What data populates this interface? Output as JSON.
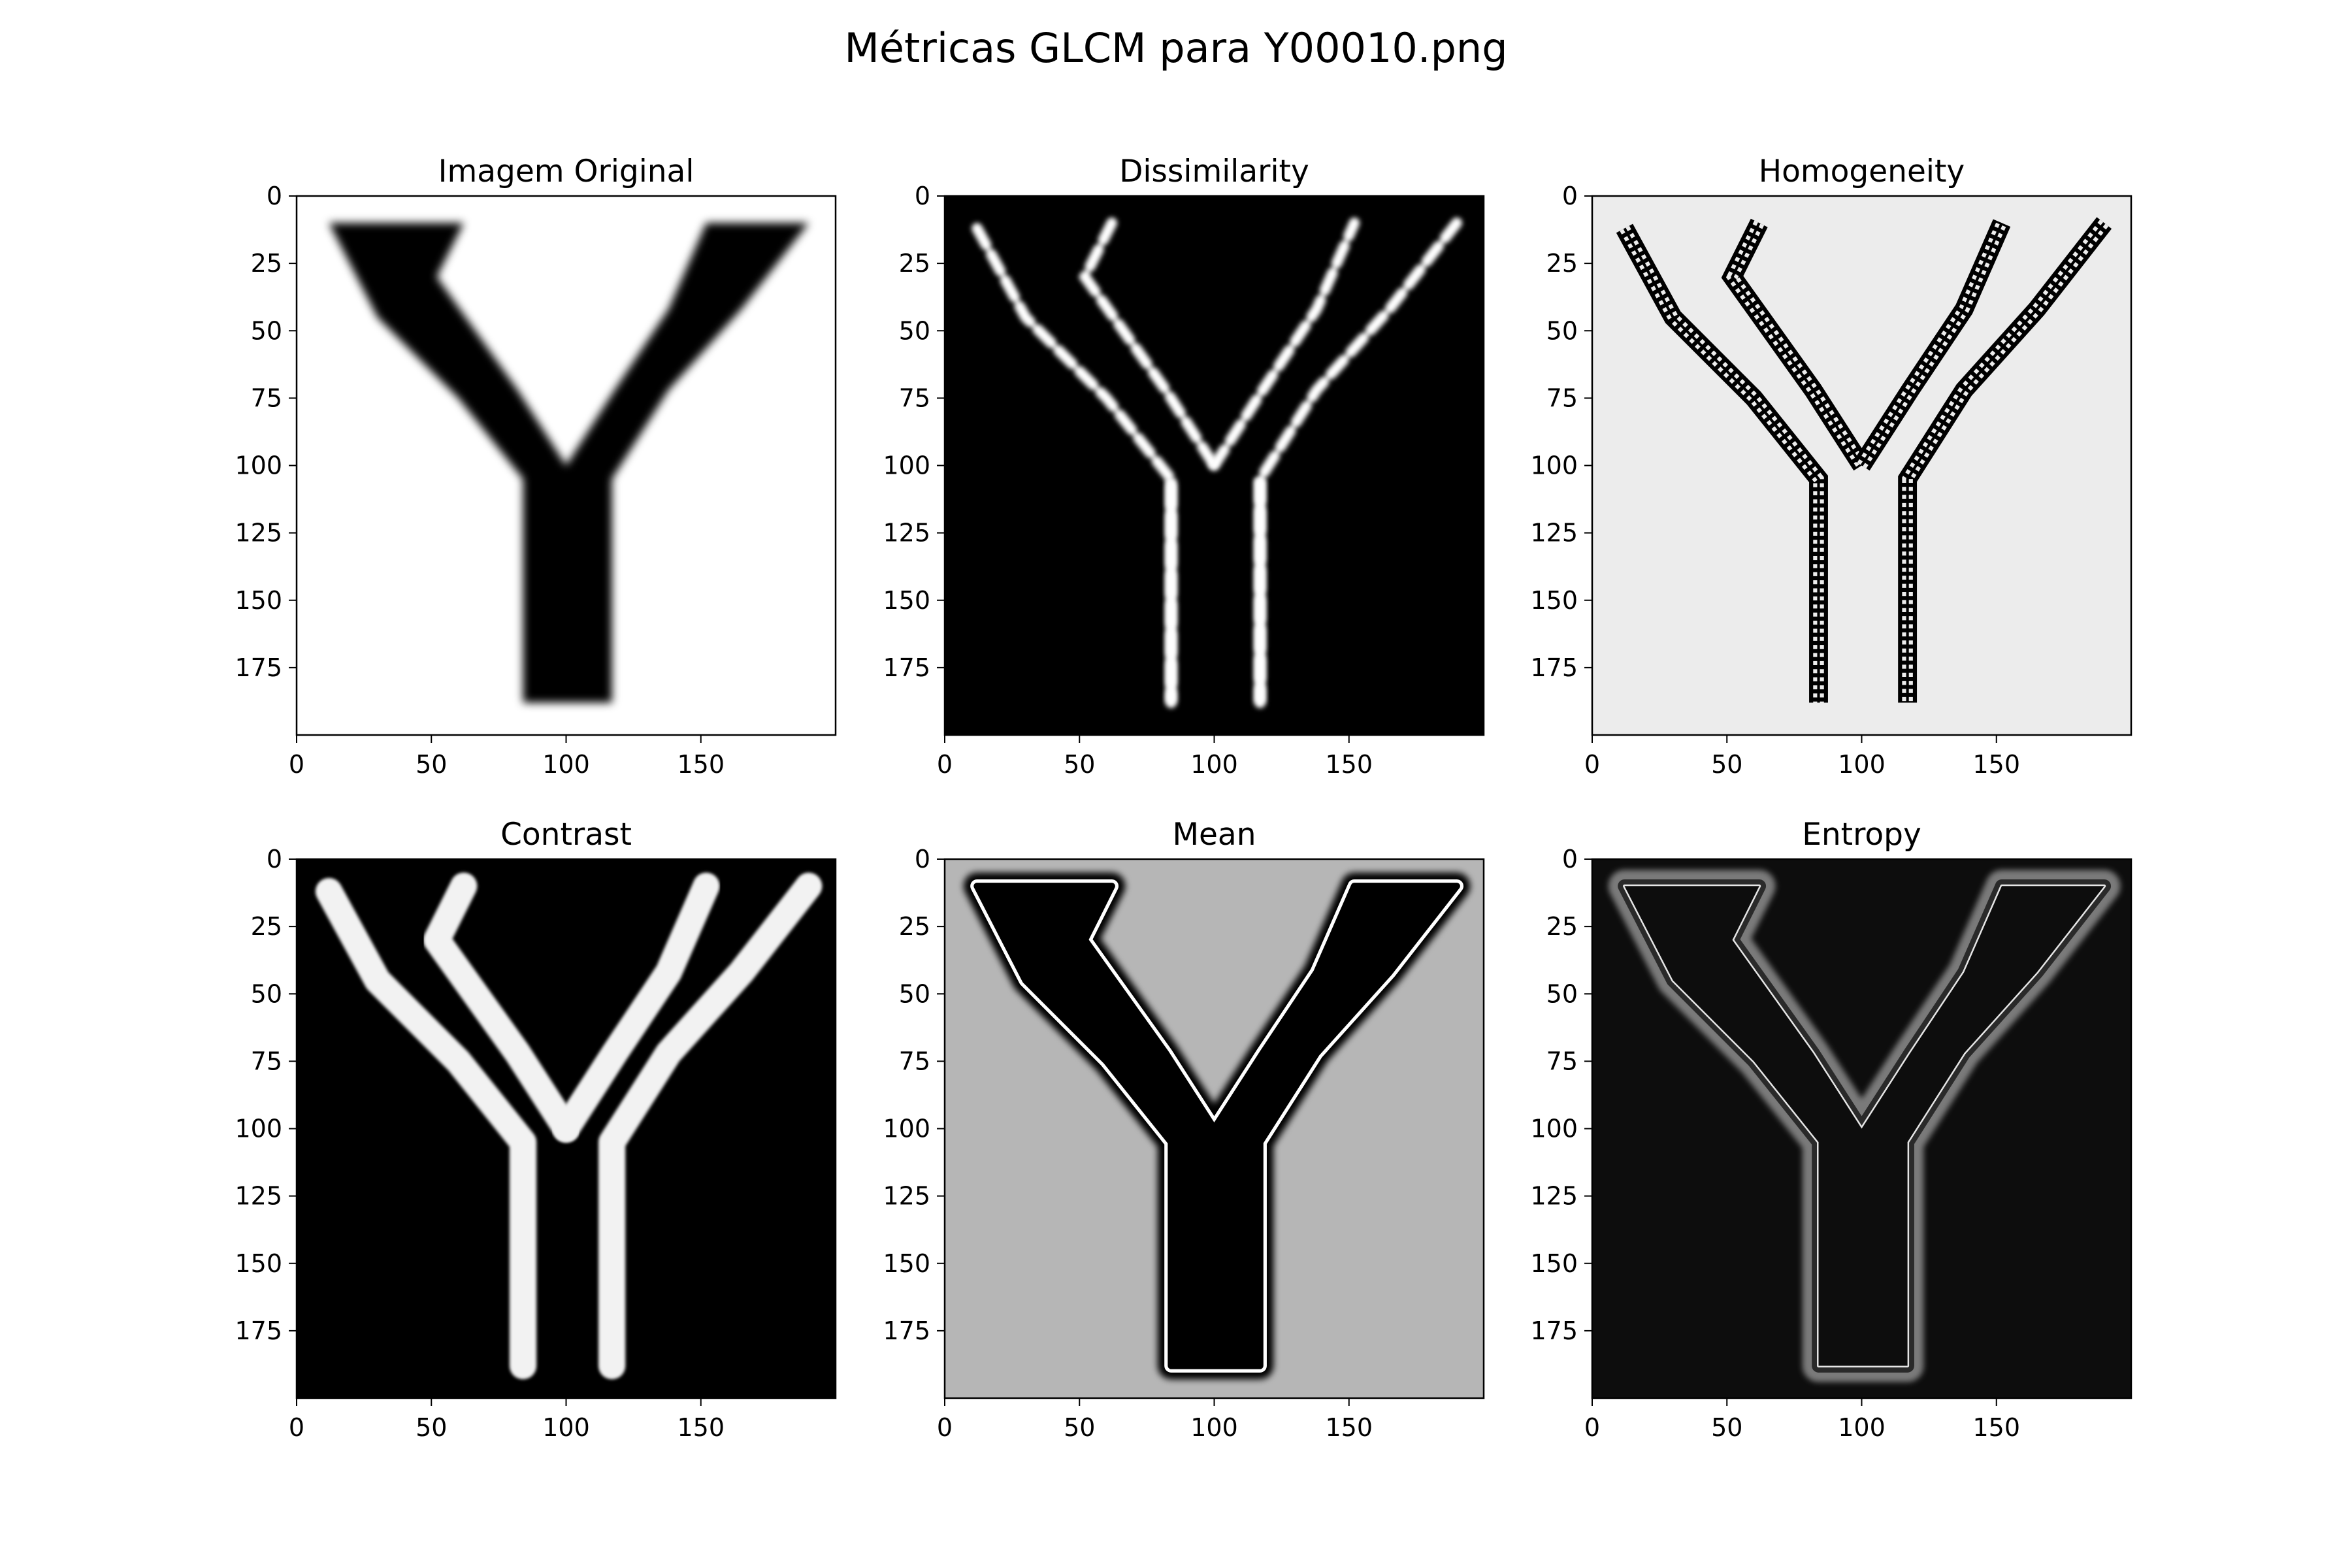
{
  "title": "Métricas GLCM para Y00010.png",
  "chart_data": [
    {
      "type": "heatmap",
      "title": "Imagem Original",
      "mode": "original",
      "xlim": [
        0,
        200
      ],
      "ylim": [
        200,
        0
      ],
      "xticks": [
        0,
        50,
        100,
        150
      ],
      "xtick_labels": [
        "0",
        "50",
        "100",
        "150"
      ],
      "yticks": [
        0,
        25,
        50,
        75,
        100,
        125,
        150,
        175
      ],
      "ytick_labels": [
        "0",
        "25",
        "50",
        "75",
        "100",
        "125",
        "150",
        "175"
      ],
      "background": "#ffffff",
      "foreground": "#000000"
    },
    {
      "type": "heatmap",
      "title": "Dissimilarity",
      "mode": "dissimilarity",
      "xlim": [
        0,
        200
      ],
      "ylim": [
        200,
        0
      ],
      "xticks": [
        0,
        50,
        100,
        150
      ],
      "xtick_labels": [
        "0",
        "50",
        "100",
        "150"
      ],
      "yticks": [
        0,
        25,
        50,
        75,
        100,
        125,
        150,
        175
      ],
      "ytick_labels": [
        "0",
        "25",
        "50",
        "75",
        "100",
        "125",
        "150",
        "175"
      ],
      "background": "#000000",
      "foreground": "#ffffff"
    },
    {
      "type": "heatmap",
      "title": "Homogeneity",
      "mode": "homogeneity",
      "xlim": [
        0,
        200
      ],
      "ylim": [
        200,
        0
      ],
      "xticks": [
        0,
        50,
        100,
        150
      ],
      "xtick_labels": [
        "0",
        "50",
        "100",
        "150"
      ],
      "yticks": [
        0,
        25,
        50,
        75,
        100,
        125,
        150,
        175
      ],
      "ytick_labels": [
        "0",
        "25",
        "50",
        "75",
        "100",
        "125",
        "150",
        "175"
      ],
      "background": "#ececec",
      "foreground": "#000000"
    },
    {
      "type": "heatmap",
      "title": "Contrast",
      "mode": "contrast",
      "xlim": [
        0,
        200
      ],
      "ylim": [
        200,
        0
      ],
      "xticks": [
        0,
        50,
        100,
        150
      ],
      "xtick_labels": [
        "0",
        "50",
        "100",
        "150"
      ],
      "yticks": [
        0,
        25,
        50,
        75,
        100,
        125,
        150,
        175
      ],
      "ytick_labels": [
        "0",
        "25",
        "50",
        "75",
        "100",
        "125",
        "150",
        "175"
      ],
      "background": "#000000",
      "foreground": "#f2f2f2"
    },
    {
      "type": "heatmap",
      "title": "Mean",
      "mode": "mean",
      "xlim": [
        0,
        200
      ],
      "ylim": [
        200,
        0
      ],
      "xticks": [
        0,
        50,
        100,
        150
      ],
      "xtick_labels": [
        "0",
        "50",
        "100",
        "150"
      ],
      "yticks": [
        0,
        25,
        50,
        75,
        100,
        125,
        150,
        175
      ],
      "ytick_labels": [
        "0",
        "25",
        "50",
        "75",
        "100",
        "125",
        "150",
        "175"
      ],
      "background": "#b6b6b6",
      "foreground": "#000000"
    },
    {
      "type": "heatmap",
      "title": "Entropy",
      "mode": "entropy",
      "xlim": [
        0,
        200
      ],
      "ylim": [
        200,
        0
      ],
      "xticks": [
        0,
        50,
        100,
        150
      ],
      "xtick_labels": [
        "0",
        "50",
        "100",
        "150"
      ],
      "yticks": [
        0,
        25,
        50,
        75,
        100,
        125,
        150,
        175
      ],
      "ytick_labels": [
        "0",
        "25",
        "50",
        "75",
        "100",
        "125",
        "150",
        "175"
      ],
      "background": "#0d0d0d",
      "foreground": "#7a7a7a"
    }
  ]
}
